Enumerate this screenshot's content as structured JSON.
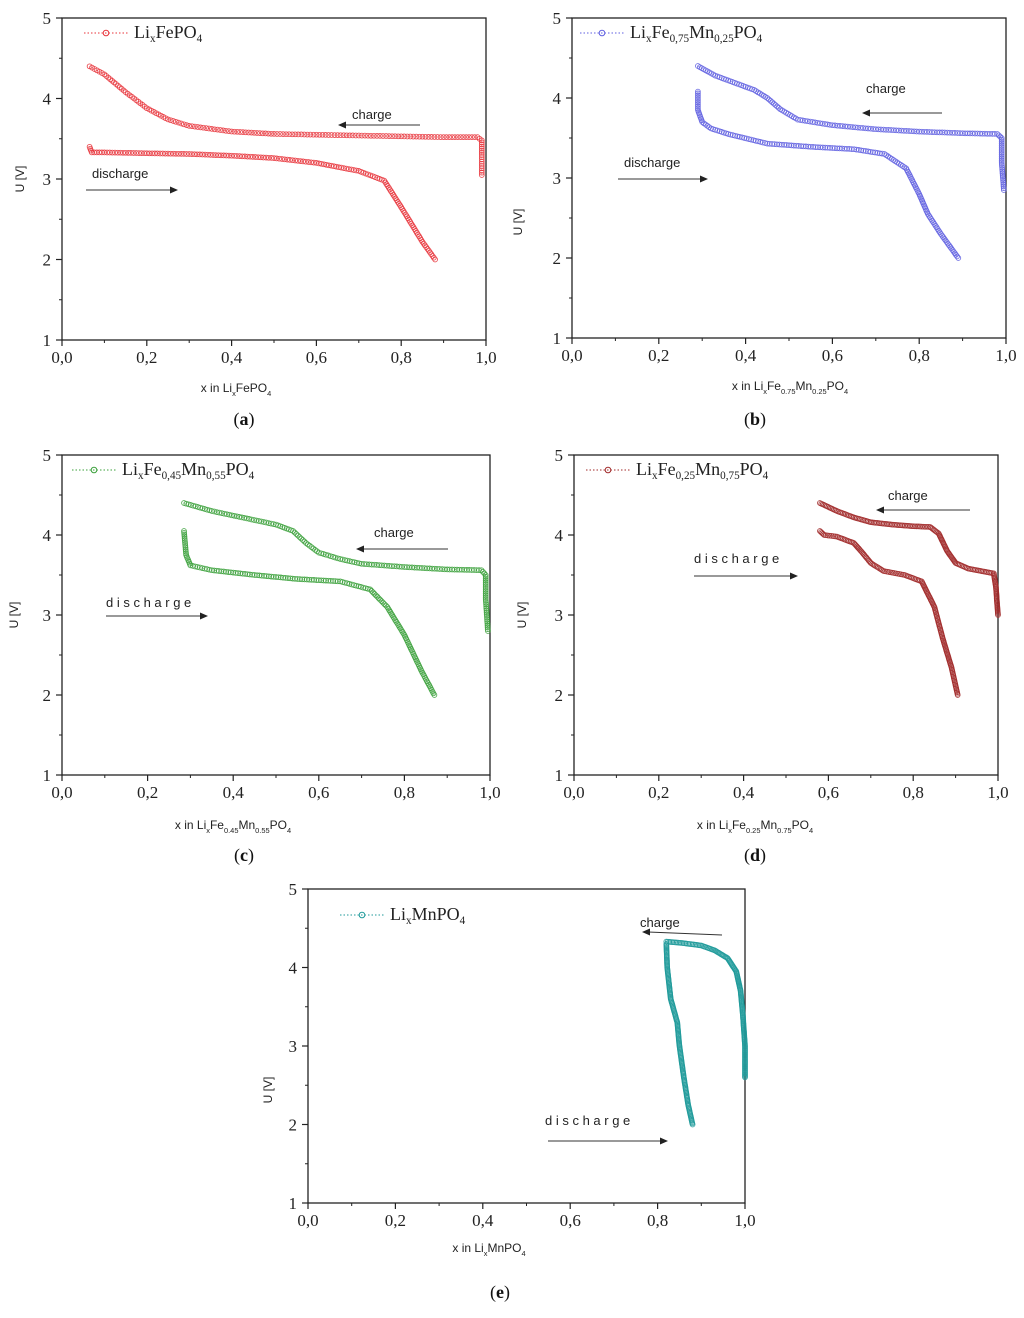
{
  "chart_data": [
    {
      "type": "scatter",
      "panel_label": "a",
      "color": "#e8333a",
      "legend": {
        "main": "Li",
        "sub1": "x",
        "rest": "FePO",
        "sub2": "4"
      },
      "xlabel": {
        "main": "x in Li",
        "sub1": "x",
        "rest": "FePO",
        "sub2": "4"
      },
      "ylabel": "U [V]",
      "xlim": [
        0.0,
        1.0
      ],
      "ylim": [
        1,
        5
      ],
      "xticks": [
        "0,0",
        "0,2",
        "0,4",
        "0,6",
        "0,8",
        "1,0"
      ],
      "yticks": [
        "1",
        "2",
        "3",
        "4",
        "5"
      ],
      "annotations": {
        "charge": "charge",
        "discharge": "discharge"
      },
      "charge_x": [
        0.065,
        0.1,
        0.15,
        0.2,
        0.25,
        0.3,
        0.4,
        0.5,
        0.6,
        0.7,
        0.8,
        0.9,
        0.98,
        0.99,
        0.99,
        0.99
      ],
      "charge_y": [
        4.4,
        4.3,
        4.08,
        3.88,
        3.74,
        3.66,
        3.59,
        3.56,
        3.55,
        3.54,
        3.53,
        3.52,
        3.52,
        3.48,
        3.3,
        3.05
      ],
      "discharge_x": [
        0.065,
        0.07,
        0.1,
        0.2,
        0.3,
        0.4,
        0.5,
        0.6,
        0.7,
        0.76,
        0.8,
        0.85,
        0.88
      ],
      "discharge_y": [
        3.4,
        3.33,
        3.33,
        3.32,
        3.31,
        3.29,
        3.26,
        3.2,
        3.1,
        2.98,
        2.65,
        2.22,
        2.0
      ]
    },
    {
      "type": "scatter",
      "panel_label": "b",
      "color": "#5f5fe0",
      "legend": {
        "main": "Li",
        "sub1": "x",
        "rest": "Fe",
        "sub2": "0,75",
        "rest2": "Mn",
        "sub3": "0,25",
        "rest3": "PO",
        "sub4": "4"
      },
      "xlabel": {
        "main": "x in Li",
        "sub1": "x",
        "rest": "Fe",
        "sub2": "0.75",
        "rest2": "Mn",
        "sub3": "0.25",
        "rest3": "PO",
        "sub4": "4"
      },
      "ylabel": "U [V]",
      "xlim": [
        0.0,
        1.0
      ],
      "ylim": [
        1,
        5
      ],
      "xticks": [
        "0,0",
        "0,2",
        "0,4",
        "0,6",
        "0,8",
        "1,0"
      ],
      "yticks": [
        "1",
        "2",
        "3",
        "4",
        "5"
      ],
      "annotations": {
        "charge": "charge",
        "discharge": "discharge"
      },
      "charge_x": [
        0.29,
        0.33,
        0.38,
        0.42,
        0.45,
        0.48,
        0.52,
        0.6,
        0.7,
        0.8,
        0.9,
        0.98,
        0.99,
        0.99,
        0.995
      ],
      "charge_y": [
        4.4,
        4.28,
        4.18,
        4.1,
        4.0,
        3.86,
        3.73,
        3.66,
        3.61,
        3.58,
        3.56,
        3.55,
        3.5,
        3.2,
        2.85
      ],
      "discharge_x": [
        0.29,
        0.29,
        0.3,
        0.32,
        0.36,
        0.45,
        0.55,
        0.65,
        0.72,
        0.77,
        0.8,
        0.82,
        0.85,
        0.89
      ],
      "discharge_y": [
        4.08,
        3.85,
        3.7,
        3.62,
        3.55,
        3.43,
        3.39,
        3.36,
        3.3,
        3.12,
        2.8,
        2.55,
        2.3,
        2.0
      ]
    },
    {
      "type": "scatter",
      "panel_label": "c",
      "color": "#3aa03a",
      "legend": {
        "main": "Li",
        "sub1": "x",
        "rest": "Fe",
        "sub2": "0,45",
        "rest2": "Mn",
        "sub3": "0,55",
        "rest3": "PO",
        "sub4": "4"
      },
      "xlabel": {
        "main": "x in Li",
        "sub1": "x",
        "rest": "Fe",
        "sub2": "0.45",
        "rest2": "Mn",
        "sub3": "0.55",
        "rest3": "PO",
        "sub4": "4"
      },
      "ylabel": "U [V]",
      "xlim": [
        0.0,
        1.0
      ],
      "ylim": [
        1,
        5
      ],
      "xticks": [
        "0,0",
        "0,2",
        "0,4",
        "0,6",
        "0,8",
        "1,0"
      ],
      "yticks": [
        "1",
        "2",
        "3",
        "4",
        "5"
      ],
      "annotations": {
        "charge": "charge",
        "discharge": "d i s c h a r g e"
      },
      "charge_x": [
        0.285,
        0.35,
        0.42,
        0.5,
        0.54,
        0.57,
        0.6,
        0.65,
        0.7,
        0.8,
        0.9,
        0.98,
        0.99,
        0.99,
        0.995
      ],
      "charge_y": [
        4.4,
        4.3,
        4.22,
        4.13,
        4.05,
        3.9,
        3.78,
        3.7,
        3.64,
        3.6,
        3.57,
        3.56,
        3.5,
        3.2,
        2.8
      ],
      "discharge_x": [
        0.285,
        0.29,
        0.3,
        0.35,
        0.45,
        0.55,
        0.65,
        0.72,
        0.76,
        0.8,
        0.84,
        0.87
      ],
      "discharge_y": [
        4.05,
        3.75,
        3.62,
        3.56,
        3.5,
        3.45,
        3.42,
        3.32,
        3.1,
        2.75,
        2.3,
        2.0
      ]
    },
    {
      "type": "scatter",
      "panel_label": "d",
      "color": "#a12a2a",
      "legend": {
        "main": "Li",
        "sub1": "x",
        "rest": "Fe",
        "sub2": "0,25",
        "rest2": "Mn",
        "sub3": "0,75",
        "rest3": "PO",
        "sub4": "4"
      },
      "xlabel": {
        "main": "x in Li",
        "sub1": "x",
        "rest": "Fe",
        "sub2": "0.25",
        "rest2": "Mn",
        "sub3": "0.75",
        "rest3": "PO",
        "sub4": "4"
      },
      "ylabel": "U [V]",
      "xlim": [
        0.0,
        1.0
      ],
      "ylim": [
        1,
        5
      ],
      "xticks": [
        "0,0",
        "0,2",
        "0,4",
        "0,6",
        "0,8",
        "1,0"
      ],
      "yticks": [
        "1",
        "2",
        "3",
        "4",
        "5"
      ],
      "annotations": {
        "charge": "charge",
        "discharge": "d i s c h a r g e"
      },
      "charge_x": [
        0.58,
        0.62,
        0.66,
        0.7,
        0.75,
        0.8,
        0.84,
        0.86,
        0.88,
        0.9,
        0.93,
        0.96,
        0.99,
        0.995,
        1.0
      ],
      "charge_y": [
        4.4,
        4.3,
        4.22,
        4.16,
        4.13,
        4.11,
        4.1,
        4.02,
        3.8,
        3.65,
        3.58,
        3.55,
        3.52,
        3.35,
        3.0
      ],
      "discharge_x": [
        0.58,
        0.59,
        0.62,
        0.66,
        0.68,
        0.7,
        0.73,
        0.78,
        0.82,
        0.85,
        0.87,
        0.89,
        0.905
      ],
      "discharge_y": [
        4.05,
        4.0,
        3.98,
        3.9,
        3.78,
        3.65,
        3.55,
        3.5,
        3.42,
        3.1,
        2.7,
        2.35,
        2.0
      ]
    },
    {
      "type": "scatter",
      "panel_label": "e",
      "color": "#1f9a9a",
      "legend": {
        "main": "Li",
        "sub1": "x",
        "rest": "MnPO",
        "sub2": "4"
      },
      "xlabel": {
        "main": "x in Li",
        "sub1": "x",
        "rest": "MnPO",
        "sub2": "4"
      },
      "ylabel": "U [V]",
      "xlim": [
        0.0,
        1.0
      ],
      "ylim": [
        1,
        5
      ],
      "xticks": [
        "0,0",
        "0,2",
        "0,4",
        "0,6",
        "0,8",
        "1,0"
      ],
      "yticks": [
        "1",
        "2",
        "3",
        "4",
        "5"
      ],
      "annotations": {
        "charge": "charge",
        "discharge": "d i s c h a r g e"
      },
      "charge_x": [
        0.82,
        0.86,
        0.9,
        0.93,
        0.96,
        0.98,
        0.99,
        0.995,
        1.0,
        1.0,
        1.0
      ],
      "charge_y": [
        4.33,
        4.31,
        4.28,
        4.22,
        4.12,
        3.95,
        3.7,
        3.4,
        3.0,
        2.8,
        2.6
      ],
      "discharge_x": [
        0.82,
        0.822,
        0.83,
        0.845,
        0.85,
        0.86,
        0.87,
        0.88
      ],
      "discharge_y": [
        4.3,
        4.0,
        3.6,
        3.3,
        3.0,
        2.6,
        2.25,
        2.0
      ]
    }
  ]
}
